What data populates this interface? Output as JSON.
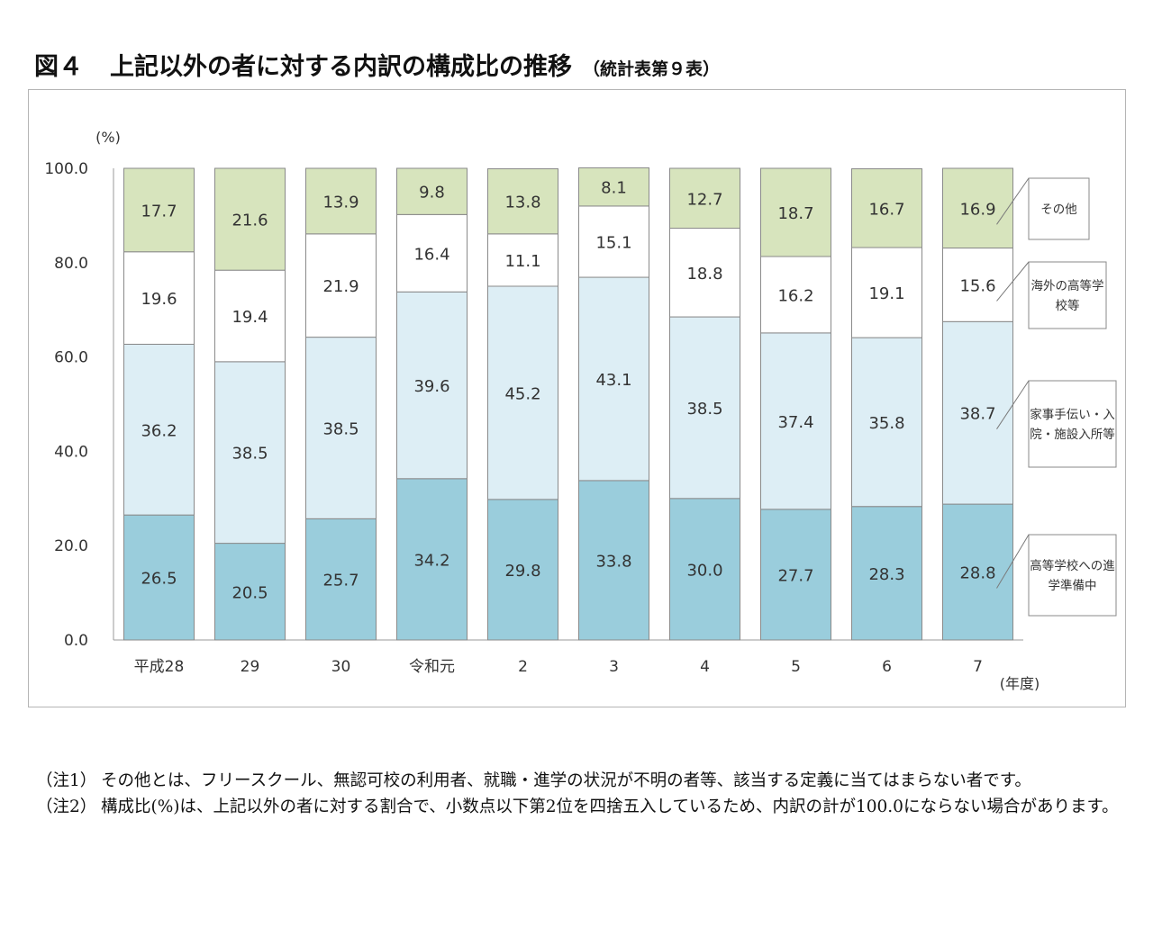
{
  "title": {
    "figure": "図４",
    "main": "上記以外の者に対する内訳の構成比の推移",
    "source": "（統計表第９表）"
  },
  "chart_data": {
    "type": "bar",
    "stacked": true,
    "ylabel": "(%)",
    "xlabel": "(年度)",
    "ylim": [
      0,
      100
    ],
    "yticks": [
      "0.0",
      "20.0",
      "40.0",
      "60.0",
      "80.0",
      "100.0"
    ],
    "grid": false,
    "legend_placement": "right",
    "categories": [
      "平成28",
      "29",
      "30",
      "令和元",
      "2",
      "3",
      "4",
      "5",
      "6",
      "7"
    ],
    "series": [
      {
        "name": "高等学校への進学準備中",
        "color": "#9acddc",
        "values": [
          26.5,
          20.5,
          25.7,
          34.2,
          29.8,
          33.8,
          30.0,
          27.7,
          28.3,
          28.8
        ]
      },
      {
        "name": "家事手伝い・入院・施設入所等",
        "color": "#ddeef5",
        "values": [
          36.2,
          38.5,
          38.5,
          39.6,
          45.2,
          43.1,
          38.5,
          37.4,
          35.8,
          38.7
        ]
      },
      {
        "name": "海外の高等学校等",
        "color": "#ffffff",
        "values": [
          19.6,
          19.4,
          21.9,
          16.4,
          11.1,
          15.1,
          18.8,
          16.2,
          19.1,
          15.6
        ]
      },
      {
        "name": "その他",
        "color": "#d7e4bd",
        "values": [
          17.7,
          21.6,
          13.9,
          9.8,
          13.8,
          8.1,
          12.7,
          18.7,
          16.7,
          16.9
        ]
      }
    ],
    "legend_lines": [
      [
        "その他"
      ],
      [
        "海外の高等学",
        "校等"
      ],
      [
        "家事手伝い・入",
        "院・施設入所等"
      ],
      [
        "高等学校への進",
        "学準備中"
      ]
    ]
  },
  "notes": [
    {
      "label": "（注1）",
      "text": "その他とは、フリースクール、無認可校の利用者、就職・進学の状況が不明の者等、該当する定義に当てはまらない者です。"
    },
    {
      "label": "（注2）",
      "text": "構成比(%)は、上記以外の者に対する割合で、小数点以下第2位を四捨五入しているため、内訳の計が100.0にならない場合があります。"
    }
  ]
}
